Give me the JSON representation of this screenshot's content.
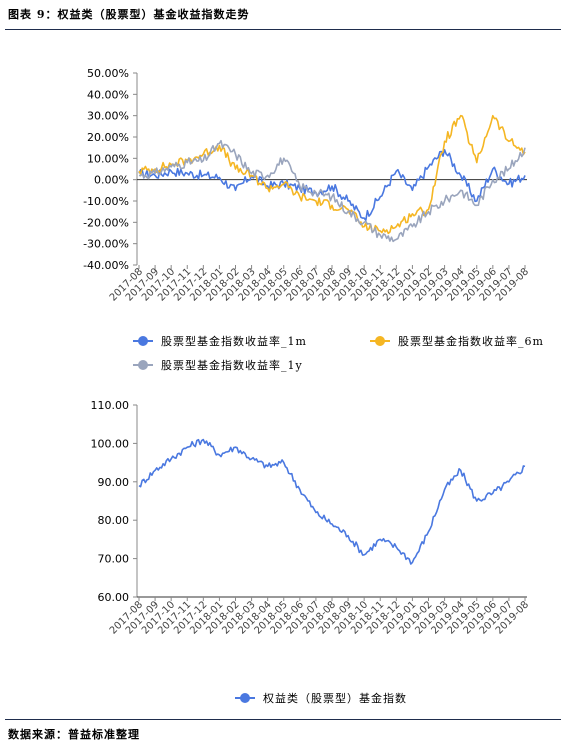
{
  "header": {
    "title": "图表 9：权益类（股票型）基金收益指数走势"
  },
  "footer": {
    "source": "数据来源：普益标准整理"
  },
  "colors": {
    "series_1m": "#4a78e0",
    "series_6m": "#f5b623",
    "series_1y": "#9aa5bd",
    "index": "#4a78e0",
    "rule": "#1f2d4d"
  },
  "chart_data": [
    {
      "type": "line",
      "title": "",
      "xlabel": "",
      "ylabel": "",
      "ylim": [
        -40,
        50
      ],
      "y_ticks": [
        "50.00%",
        "40.00%",
        "30.00%",
        "20.00%",
        "10.00%",
        "0.00%",
        "-10.00%",
        "-20.00%",
        "-30.00%",
        "-40.00%"
      ],
      "y_tick_values": [
        50,
        40,
        30,
        20,
        10,
        0,
        -10,
        -20,
        -30,
        -40
      ],
      "categories": [
        "2017-08",
        "2017-09",
        "2017-10",
        "2017-11",
        "2017-12",
        "2018-01",
        "2018-02",
        "2018-03",
        "2018-04",
        "2018-05",
        "2018-06",
        "2018-07",
        "2018-08",
        "2018-09",
        "2018-10",
        "2018-11",
        "2018-12",
        "2019-01",
        "2019-02",
        "2019-03",
        "2019-04",
        "2019-05",
        "2019-06",
        "2019-07",
        "2019-08"
      ],
      "legend_position": "bottom",
      "series": [
        {
          "name": "股票型基金指数收益率_1m",
          "color": "#4a78e0",
          "values": [
            3,
            2,
            4,
            3,
            2,
            1,
            -5,
            2,
            -3,
            -2,
            -4,
            -6,
            -3,
            -10,
            -18,
            -8,
            4,
            -5,
            6,
            14,
            2,
            -10,
            5,
            -2,
            2
          ]
        },
        {
          "name": "股票型基金指数收益率_6m",
          "color": "#f5b623",
          "values": [
            4,
            5,
            7,
            9,
            12,
            16,
            5,
            2,
            -4,
            -2,
            -8,
            -10,
            -12,
            -14,
            -22,
            -24,
            -22,
            -16,
            -14,
            18,
            30,
            8,
            30,
            18,
            13
          ]
        },
        {
          "name": "股票型基金指数收益率_1y",
          "color": "#9aa5bd",
          "values": [
            2,
            3,
            6,
            8,
            9,
            17,
            12,
            3,
            2,
            10,
            -3,
            -6,
            -8,
            -15,
            -20,
            -26,
            -28,
            -22,
            -15,
            -10,
            -5,
            -12,
            0,
            5,
            15
          ]
        }
      ]
    },
    {
      "type": "line",
      "title": "",
      "xlabel": "",
      "ylabel": "",
      "ylim": [
        60,
        110
      ],
      "y_ticks": [
        "110.00",
        "100.00",
        "90.00",
        "80.00",
        "70.00",
        "60.00"
      ],
      "y_tick_values": [
        110,
        100,
        90,
        80,
        70,
        60
      ],
      "categories": [
        "2017-08",
        "2017-09",
        "2017-10",
        "2017-11",
        "2017-12",
        "2018-01",
        "2018-02",
        "2018-03",
        "2018-04",
        "2018-05",
        "2018-06",
        "2018-07",
        "2018-08",
        "2018-09",
        "2018-10",
        "2018-11",
        "2018-12",
        "2019-01",
        "2019-02",
        "2019-03",
        "2019-04",
        "2019-05",
        "2019-06",
        "2019-07",
        "2019-08"
      ],
      "legend_position": "bottom",
      "series": [
        {
          "name": "权益类（股票型）基金指数",
          "color": "#4a78e0",
          "values": [
            89,
            93,
            96,
            99,
            101,
            97,
            99,
            96,
            94,
            95,
            88,
            82,
            79,
            76,
            71,
            75,
            73,
            69,
            77,
            88,
            93,
            85,
            87,
            90,
            94
          ]
        }
      ]
    }
  ]
}
